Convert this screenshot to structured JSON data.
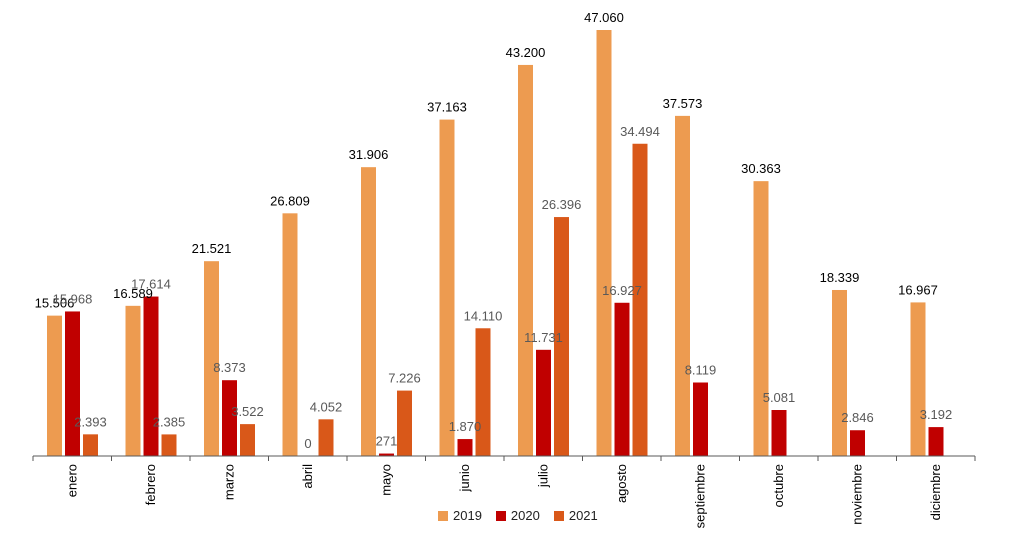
{
  "chart_data": {
    "type": "bar",
    "title": "",
    "xlabel": "",
    "ylabel": "",
    "ylim": [
      0,
      48000
    ],
    "grid": false,
    "legend_position": "bottom",
    "categories": [
      "enero",
      "febrero",
      "marzo",
      "abril",
      "mayo",
      "junio",
      "julio",
      "agosto",
      "septiembre",
      "octubre",
      "noviembre",
      "diciembre"
    ],
    "series": [
      {
        "name": "2019",
        "color": "#ED9B50",
        "label_color": "#000000",
        "values": [
          15506,
          16589,
          21521,
          26809,
          31906,
          37163,
          43200,
          47060,
          37573,
          30363,
          18339,
          16967
        ],
        "labels": [
          "15.506",
          "16.589",
          "21.521",
          "26.809",
          "31.906",
          "37.163",
          "43.200",
          "47.060",
          "37.573",
          "30.363",
          "18.339",
          "16.967"
        ]
      },
      {
        "name": "2020",
        "color": "#C00000",
        "label_color": "#595959",
        "values": [
          15968,
          17614,
          8373,
          0,
          271,
          1870,
          11731,
          16927,
          8119,
          5081,
          2846,
          3192
        ],
        "labels": [
          "15.968",
          "17.614",
          "8.373",
          "0",
          "271",
          "1.870",
          "11.731",
          "16.927",
          "8.119",
          "5.081",
          "2.846",
          "3.192"
        ]
      },
      {
        "name": "2021",
        "color": "#D95819",
        "label_color": "#595959",
        "values": [
          2393,
          2385,
          3522,
          4052,
          7226,
          14110,
          26396,
          34494,
          null,
          null,
          null,
          null
        ],
        "labels": [
          "2.393",
          "2.385",
          "3.522",
          "4.052",
          "7.226",
          "14.110",
          "26.396",
          "34.494",
          null,
          null,
          null,
          null
        ]
      }
    ]
  }
}
